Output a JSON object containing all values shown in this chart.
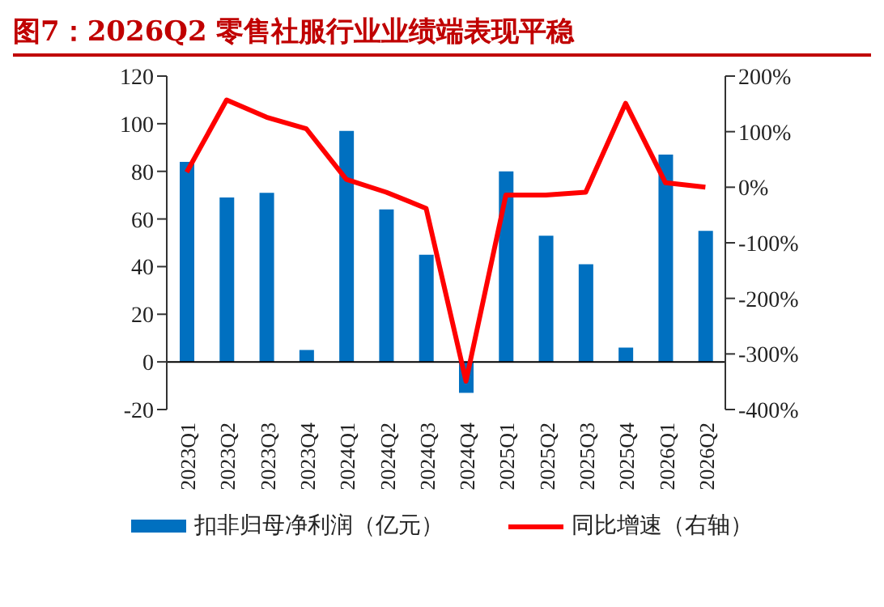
{
  "chart_data": {
    "type": "bar",
    "title": "图7：2026Q2 零售社服行业业绩端表现平稳",
    "categories": [
      "2023Q1",
      "2023Q2",
      "2023Q3",
      "2023Q4",
      "2024Q1",
      "2024Q2",
      "2024Q3",
      "2024Q4",
      "2025Q1",
      "2025Q2",
      "2025Q3",
      "2025Q4",
      "2026Q1",
      "2026Q2"
    ],
    "series": [
      {
        "name": "扣非归母净利润（亿元）",
        "color": "#0070c0",
        "values": [
          84,
          69,
          71,
          5,
          97,
          64,
          45,
          -13,
          80,
          53,
          41,
          6,
          87,
          55
        ]
      },
      {
        "name": "同比增速（右轴）",
        "type": "line",
        "axis": "y2",
        "color": "#ff0000",
        "values": [
          27,
          157,
          126,
          105,
          14,
          -9,
          -38,
          -349,
          -14,
          -14,
          -9,
          151,
          8,
          0
        ]
      }
    ],
    "ylim": [
      -20,
      120
    ],
    "yticks": [
      -20,
      0,
      20,
      40,
      60,
      80,
      100,
      120
    ],
    "y2lim": [
      -400,
      200
    ],
    "y2ticks": [
      {
        "value": -400,
        "label": "-400%"
      },
      {
        "value": -300,
        "label": "-300%"
      },
      {
        "value": -200,
        "label": "-200%"
      },
      {
        "value": -100,
        "label": "-100%"
      },
      {
        "value": 0,
        "label": "0%"
      },
      {
        "value": 100,
        "label": "100%"
      },
      {
        "value": 200,
        "label": "200%"
      }
    ],
    "ref_lines": [
      {
        "axis": "y",
        "value": 0,
        "color": "#000000"
      }
    ],
    "legend": "bottom",
    "grid": false,
    "marker": "none"
  }
}
